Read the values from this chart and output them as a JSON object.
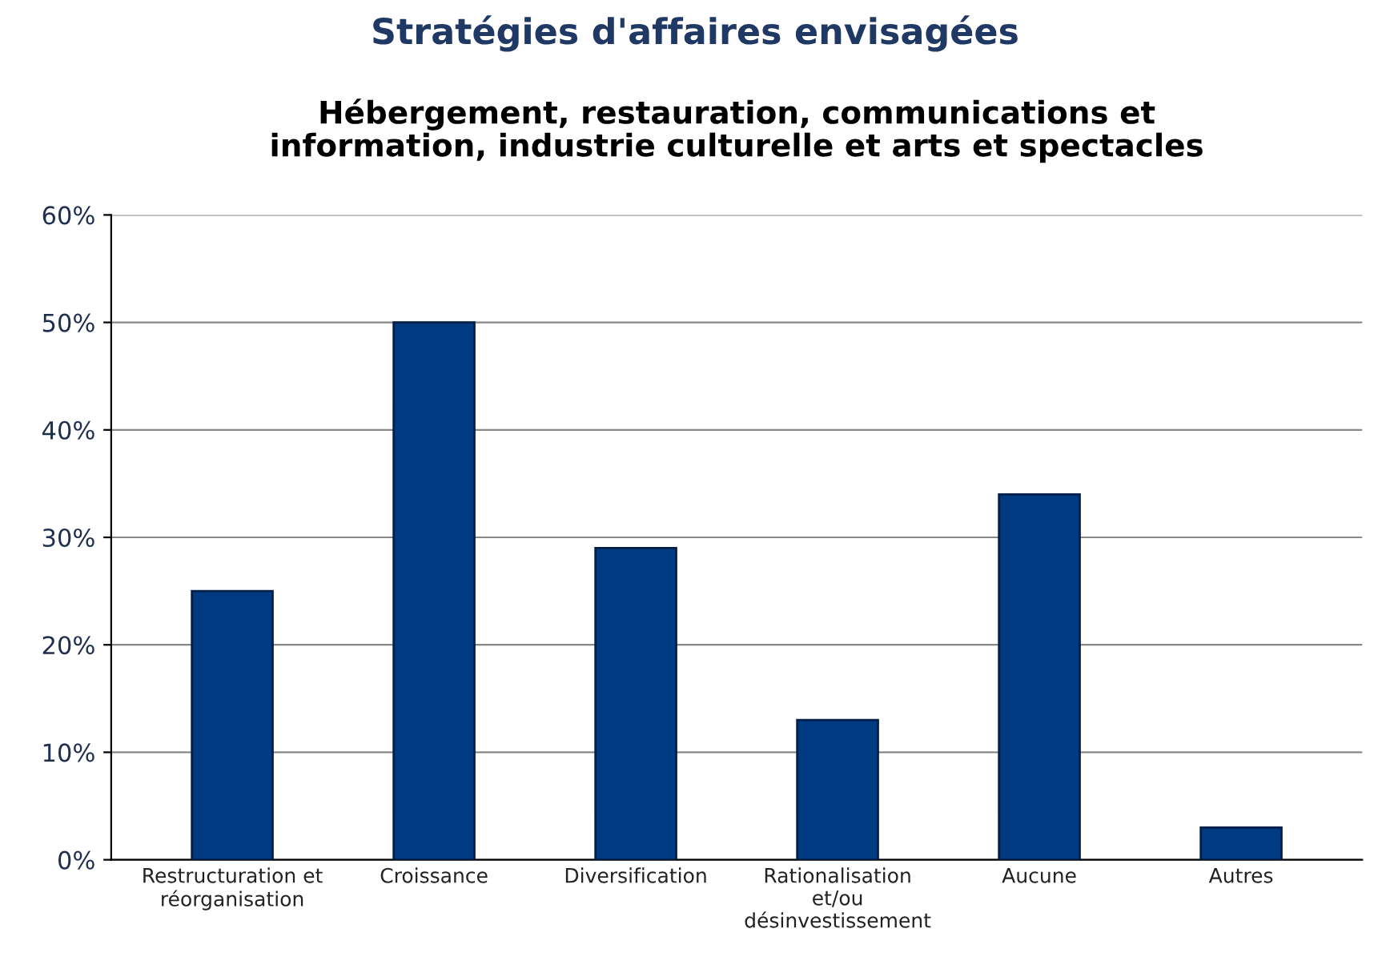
{
  "chart_data": {
    "type": "bar",
    "title": "Stratégies d'affaires envisagées",
    "subtitle": "Hébergement, restauration, communications et\ninformation, industrie culturelle et arts et spectacles",
    "categories": [
      "Restructuration et\nréorganisation",
      "Croissance",
      "Diversification",
      "Rationalisation\net/ou\ndésinvestissement",
      "Aucune",
      "Autres"
    ],
    "values": [
      25,
      50,
      29,
      13,
      34,
      3
    ],
    "color": "#003a80",
    "ylim": [
      0,
      60
    ],
    "yticks": [
      {
        "value": 0,
        "label": "0%"
      },
      {
        "value": 10,
        "label": "10%"
      },
      {
        "value": 20,
        "label": "20%"
      },
      {
        "value": 30,
        "label": "30%"
      },
      {
        "value": 40,
        "label": "40%"
      },
      {
        "value": 50,
        "label": "50%"
      },
      {
        "value": 60,
        "label": "60%"
      }
    ],
    "grid": "y"
  }
}
